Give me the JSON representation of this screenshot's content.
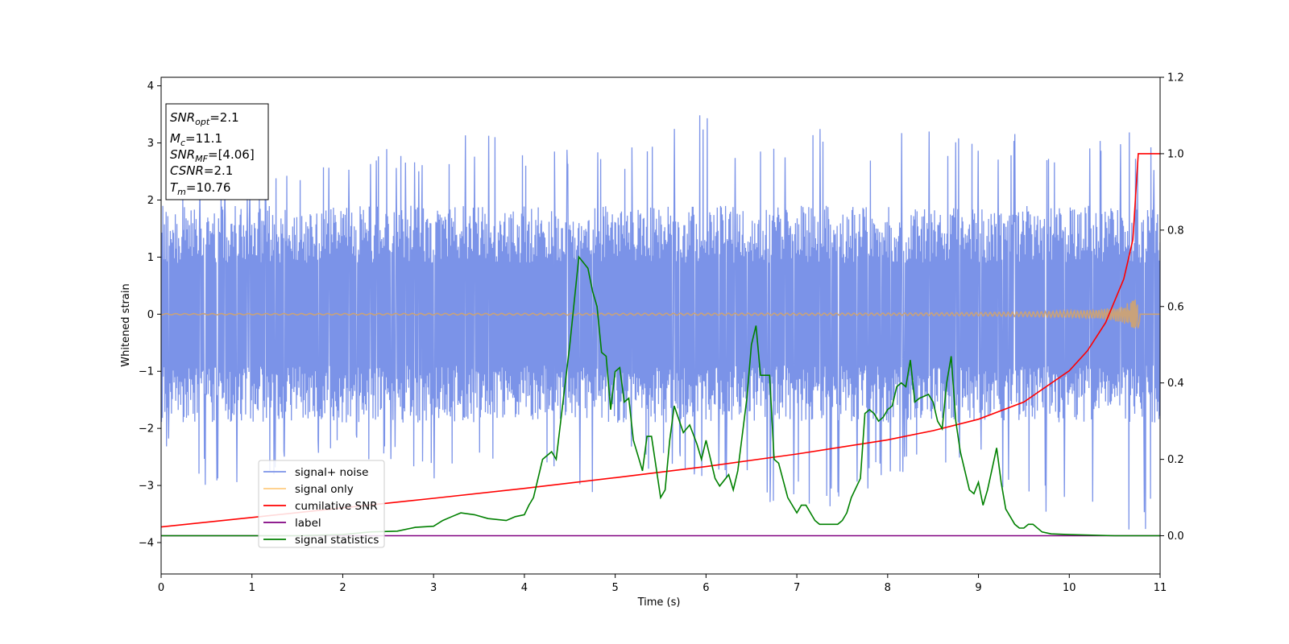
{
  "chart_data": {
    "type": "line",
    "xlabel": "Time (s)",
    "ylabel": "Whitened strain",
    "xlim": [
      0,
      11
    ],
    "ylim": [
      -4.55,
      4.15
    ],
    "y2lim": [
      -0.1,
      1.2
    ],
    "x_ticks": [
      "0",
      "1",
      "2",
      "3",
      "4",
      "5",
      "6",
      "7",
      "8",
      "9",
      "10",
      "11"
    ],
    "y_ticks": [
      "−4",
      "−3",
      "−2",
      "−1",
      "0",
      "1",
      "2",
      "3",
      "4"
    ],
    "y2_ticks": [
      "0.0",
      "0.2",
      "0.4",
      "0.6",
      "0.8",
      "1.0",
      "1.2"
    ],
    "grid": false,
    "legend_position": "lower-left",
    "info_box": {
      "snr_opt": {
        "base": "SNR",
        "sub": "opt",
        "val": "=2.1"
      },
      "mc": {
        "base": "M",
        "sub": "c",
        "val": "=11.1"
      },
      "snr_mf": {
        "base": "SNR",
        "sub": "MF",
        "val": "=[4.06]"
      },
      "csnr": {
        "base": "CSNR",
        "val": "=2.1"
      },
      "tm": {
        "base": "T",
        "sub": "m",
        "val": "=10.76"
      }
    },
    "noise_series": {
      "name": "signal+ noise",
      "color": "#7b93e8",
      "axis": "left",
      "description_values": "whitened noise amplitude approx ±2 with peaks to ±3.8",
      "envelope_hi": [
        [
          0,
          2.2
        ],
        [
          0.5,
          2.5
        ],
        [
          1,
          2.4
        ],
        [
          2,
          2.7
        ],
        [
          2.5,
          3.0
        ],
        [
          3,
          2.6
        ],
        [
          3.3,
          3.3
        ],
        [
          4,
          3.0
        ],
        [
          4.8,
          2.9
        ],
        [
          5.3,
          3.0
        ],
        [
          5.9,
          3.7
        ],
        [
          6.3,
          3.0
        ],
        [
          7.2,
          3.3
        ],
        [
          8,
          3.1
        ],
        [
          8.2,
          3.5
        ],
        [
          9,
          3.0
        ],
        [
          9.3,
          3.2
        ],
        [
          10,
          3.0
        ],
        [
          10.7,
          3.2
        ],
        [
          11,
          2.8
        ]
      ],
      "envelope_lo": [
        [
          0,
          -2.3
        ],
        [
          0.7,
          -3.3
        ],
        [
          0.9,
          -3.5
        ],
        [
          1.5,
          -2.5
        ],
        [
          2,
          -2.4
        ],
        [
          3,
          -2.9
        ],
        [
          4,
          -2.7
        ],
        [
          4.7,
          -3.4
        ],
        [
          5,
          -2.6
        ],
        [
          6,
          -2.9
        ],
        [
          6.7,
          -3.3
        ],
        [
          7.5,
          -3.6
        ],
        [
          8,
          -2.8
        ],
        [
          9,
          -2.7
        ],
        [
          9.6,
          -3.6
        ],
        [
          10,
          -3.3
        ],
        [
          10.81,
          -4.15
        ],
        [
          11,
          -2.7
        ]
      ]
    },
    "series": [
      {
        "name": "signal only",
        "color": "#ffcc80",
        "axis": "left",
        "x": [
          0,
          8.0,
          9.0,
          9.5,
          10.0,
          10.3,
          10.5,
          10.6,
          10.7,
          10.76,
          10.79,
          11.0
        ],
        "y": [
          0.01,
          0.02,
          0.03,
          0.04,
          0.06,
          0.08,
          0.12,
          0.16,
          0.24,
          0.28,
          0.0,
          0.0
        ]
      },
      {
        "name": "cumilative SNR",
        "color": "#ff0000",
        "axis": "right",
        "x": [
          0,
          1,
          2,
          3,
          4,
          5,
          6,
          7,
          8,
          8.5,
          9,
          9.5,
          10,
          10.2,
          10.4,
          10.6,
          10.7,
          10.76,
          10.8,
          11
        ],
        "y": [
          0.023,
          0.048,
          0.073,
          0.098,
          0.124,
          0.152,
          0.181,
          0.214,
          0.251,
          0.275,
          0.305,
          0.35,
          0.432,
          0.484,
          0.558,
          0.672,
          0.775,
          1.0,
          1.0,
          1.0
        ]
      },
      {
        "name": "label",
        "color": "#800080",
        "axis": "right",
        "x": [
          0,
          11
        ],
        "y": [
          0.0,
          0.0
        ]
      },
      {
        "name": "signal statistics",
        "color": "#008000",
        "axis": "right",
        "x": [
          0,
          0.5,
          1,
          1.5,
          2,
          2.3,
          2.6,
          2.8,
          3.0,
          3.1,
          3.2,
          3.3,
          3.45,
          3.6,
          3.8,
          3.9,
          4.0,
          4.05,
          4.1,
          4.2,
          4.3,
          4.35,
          4.4,
          4.5,
          4.6,
          4.7,
          4.75,
          4.8,
          4.85,
          4.9,
          4.95,
          5.0,
          5.05,
          5.1,
          5.15,
          5.2,
          5.3,
          5.35,
          5.4,
          5.5,
          5.55,
          5.6,
          5.65,
          5.75,
          5.82,
          5.9,
          5.95,
          6.0,
          6.1,
          6.15,
          6.25,
          6.3,
          6.35,
          6.45,
          6.5,
          6.55,
          6.6,
          6.7,
          6.75,
          6.8,
          6.9,
          7.0,
          7.05,
          7.1,
          7.2,
          7.25,
          7.35,
          7.45,
          7.5,
          7.55,
          7.6,
          7.7,
          7.75,
          7.8,
          7.85,
          7.9,
          7.95,
          8.0,
          8.05,
          8.1,
          8.15,
          8.2,
          8.25,
          8.3,
          8.35,
          8.45,
          8.5,
          8.55,
          8.6,
          8.65,
          8.7,
          8.75,
          8.8,
          8.9,
          8.95,
          9.0,
          9.05,
          9.1,
          9.2,
          9.25,
          9.3,
          9.4,
          9.45,
          9.5,
          9.55,
          9.6,
          9.7,
          9.8,
          10.0,
          10.5,
          11.0
        ],
        "y": [
          0.0,
          0.0,
          0.0,
          0.0,
          0.003,
          0.01,
          0.012,
          0.022,
          0.025,
          0.04,
          0.05,
          0.06,
          0.055,
          0.045,
          0.04,
          0.05,
          0.055,
          0.08,
          0.1,
          0.2,
          0.22,
          0.2,
          0.3,
          0.5,
          0.73,
          0.7,
          0.64,
          0.6,
          0.48,
          0.47,
          0.33,
          0.43,
          0.44,
          0.35,
          0.36,
          0.25,
          0.17,
          0.26,
          0.26,
          0.1,
          0.12,
          0.25,
          0.34,
          0.27,
          0.29,
          0.24,
          0.2,
          0.25,
          0.15,
          0.13,
          0.16,
          0.12,
          0.17,
          0.36,
          0.5,
          0.55,
          0.42,
          0.42,
          0.2,
          0.19,
          0.1,
          0.06,
          0.08,
          0.08,
          0.04,
          0.03,
          0.03,
          0.03,
          0.04,
          0.06,
          0.1,
          0.15,
          0.32,
          0.33,
          0.32,
          0.3,
          0.31,
          0.33,
          0.34,
          0.39,
          0.4,
          0.39,
          0.46,
          0.35,
          0.36,
          0.37,
          0.35,
          0.3,
          0.28,
          0.4,
          0.47,
          0.3,
          0.22,
          0.12,
          0.11,
          0.14,
          0.08,
          0.12,
          0.23,
          0.14,
          0.07,
          0.03,
          0.02,
          0.02,
          0.03,
          0.03,
          0.01,
          0.005,
          0.003,
          0.0,
          0.0
        ]
      }
    ]
  }
}
